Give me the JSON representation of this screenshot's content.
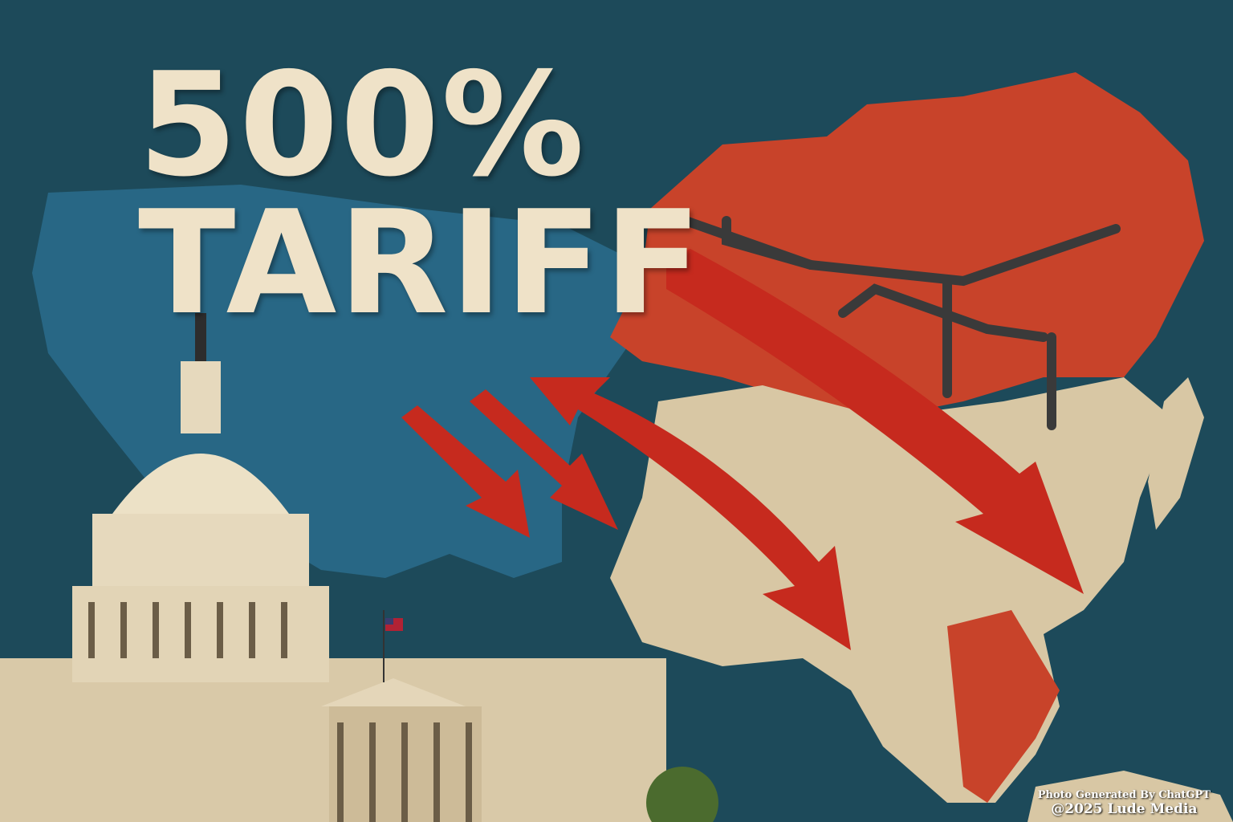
{
  "headline": {
    "line1": "500%",
    "line2": "TARIFF"
  },
  "credit": {
    "line1": "Photo Generated By ChatGPT",
    "line2": "@2025 Lude Media"
  },
  "colors": {
    "background": "#1d4a5a",
    "usa": "#2a6a8a",
    "russia": "#c8432a",
    "asia": "#d8c7a4",
    "arrows": "#c62a1e",
    "text": "#efe2c8"
  },
  "icons": [
    "us-capitol-building",
    "us-flag",
    "oil-pipeline",
    "trade-arrows"
  ]
}
